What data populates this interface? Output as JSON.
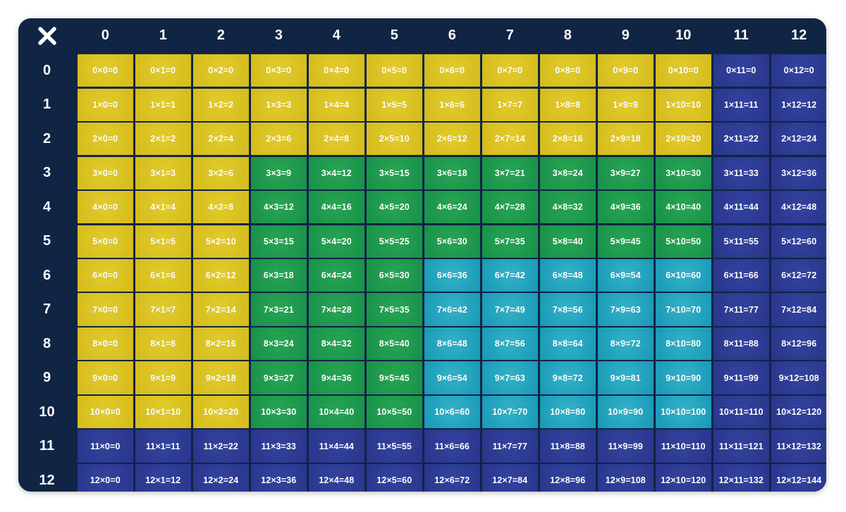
{
  "corner_icon": "times-icon",
  "columns": [
    "0",
    "1",
    "2",
    "3",
    "4",
    "5",
    "6",
    "7",
    "8",
    "9",
    "10",
    "11",
    "12"
  ],
  "rows": [
    "0",
    "1",
    "2",
    "3",
    "4",
    "5",
    "6",
    "7",
    "8",
    "9",
    "10",
    "11",
    "12"
  ],
  "colors": {
    "background": "#102444",
    "yellow": "#d9c21f",
    "green": "#1e9a4a",
    "teal": "#1fa3bd",
    "blue": "#2c3a94"
  },
  "cells": [
    [
      "0×0=0",
      "0×1=0",
      "0×2=0",
      "0×3=0",
      "0×4=0",
      "0×5=0",
      "0×6=0",
      "0×7=0",
      "0×8=0",
      "0×9=0",
      "0×10=0",
      "0×11=0",
      "0×12=0"
    ],
    [
      "1×0=0",
      "1×1=1",
      "1×2=2",
      "1×3=3",
      "1×4=4",
      "1×5=5",
      "1×6=6",
      "1×7=7",
      "1×8=8",
      "1×9=9",
      "1×10=10",
      "1×11=11",
      "1×12=12"
    ],
    [
      "2×0=0",
      "2×1=2",
      "2×2=4",
      "2×3=6",
      "2×4=8",
      "2×5=10",
      "2×6=12",
      "2×7=14",
      "2×8=16",
      "2×9=18",
      "2×10=20",
      "2×11=22",
      "2×12=24"
    ],
    [
      "3×0=0",
      "3×1=3",
      "3×2=6",
      "3×3=9",
      "3×4=12",
      "3×5=15",
      "3×6=18",
      "3×7=21",
      "3×8=24",
      "3×9=27",
      "3×10=30",
      "3×11=33",
      "3×12=36"
    ],
    [
      "4×0=0",
      "4×1=4",
      "4×2=8",
      "4×3=12",
      "4×4=16",
      "4×5=20",
      "4×6=24",
      "4×7=28",
      "4×8=32",
      "4×9=36",
      "4×10=40",
      "4×11=44",
      "4×12=48"
    ],
    [
      "5×0=0",
      "5×1=5",
      "5×2=10",
      "5×3=15",
      "5×4=20",
      "5×5=25",
      "5×6=30",
      "5×7=35",
      "5×8=40",
      "5×9=45",
      "5×10=50",
      "5×11=55",
      "5×12=60"
    ],
    [
      "6×0=0",
      "6×1=6",
      "6×2=12",
      "6×3=18",
      "6×4=24",
      "6×5=30",
      "6×6=36",
      "6×7=42",
      "6×8=48",
      "6×9=54",
      "6×10=60",
      "6×11=66",
      "6×12=72"
    ],
    [
      "7×0=0",
      "7×1=7",
      "7×2=14",
      "7×3=21",
      "7×4=28",
      "7×5=35",
      "7×6=42",
      "7×7=49",
      "7×8=56",
      "7×9=63",
      "7×10=70",
      "7×11=77",
      "7×12=84"
    ],
    [
      "8×0=0",
      "8×1=8",
      "8×2=16",
      "8×3=24",
      "8×4=32",
      "8×5=40",
      "8×6=48",
      "8×7=56",
      "8×8=64",
      "8×9=72",
      "8×10=80",
      "8×11=88",
      "8×12=96"
    ],
    [
      "9×0=0",
      "9×1=9",
      "9×2=18",
      "9×3=27",
      "9×4=36",
      "9×5=45",
      "9×6=54",
      "9×7=63",
      "9×8=72",
      "9×9=81",
      "9×10=90",
      "9×11=99",
      "9×12=108"
    ],
    [
      "10×0=0",
      "10×1=10",
      "10×2=20",
      "10×3=30",
      "10×4=40",
      "10×5=50",
      "10×6=60",
      "10×7=70",
      "10×8=80",
      "10×9=90",
      "10×10=100",
      "10×11=110",
      "10×12=120"
    ],
    [
      "11×0=0",
      "11×1=11",
      "11×2=22",
      "11×3=33",
      "11×4=44",
      "11×5=55",
      "11×6=66",
      "11×7=77",
      "11×8=88",
      "11×9=99",
      "11×10=110",
      "11×11=121",
      "11×12=132"
    ],
    [
      "12×0=0",
      "12×1=12",
      "12×2=24",
      "12×3=36",
      "12×4=48",
      "12×5=60",
      "12×6=72",
      "12×7=84",
      "12×8=96",
      "12×9=108",
      "12×10=120",
      "12×11=132",
      "12×12=144"
    ]
  ]
}
